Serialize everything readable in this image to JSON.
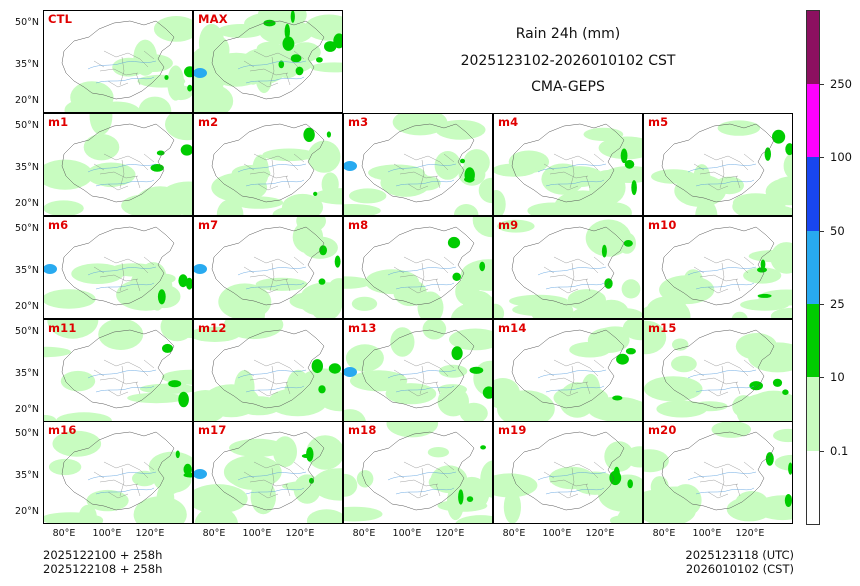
{
  "title": {
    "line1": "Rain 24h (mm)",
    "line2": "2025123102-2026010102 CST",
    "line3": "CMA-GEPS"
  },
  "footer": {
    "left_line1": "2025122100 + 258h",
    "left_line2": "2025122108 + 258h",
    "right_line1": "2025123118 (UTC)",
    "right_line2": "2026010102 (CST)"
  },
  "panels": [
    "CTL",
    "MAX",
    "m1",
    "m2",
    "m3",
    "m4",
    "m5",
    "m6",
    "m7",
    "m8",
    "m9",
    "m10",
    "m11",
    "m12",
    "m13",
    "m14",
    "m15",
    "m16",
    "m17",
    "m18",
    "m19",
    "m20"
  ],
  "y_ticks": [
    "50°N",
    "35°N",
    "20°N"
  ],
  "x_ticks": [
    "80°E",
    "100°E",
    "120°E"
  ],
  "colorbar": {
    "levels": [
      "0.1",
      "10",
      "25",
      "50",
      "100",
      "250"
    ],
    "colors": [
      "#ffffff",
      "#c8fcc0",
      "#00cc00",
      "#28aaf0",
      "#1846f0",
      "#ff00ff",
      "#8c1060"
    ]
  }
}
